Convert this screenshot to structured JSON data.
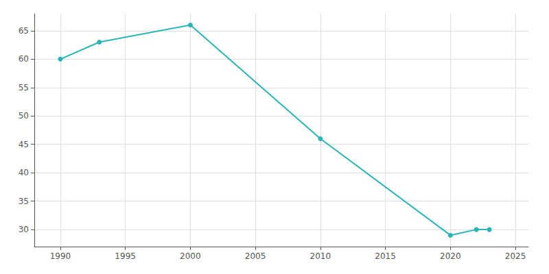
{
  "chart_data": {
    "type": "line",
    "x": [
      1990,
      1993,
      2000,
      2010,
      2020,
      2022,
      2023
    ],
    "values": [
      60,
      63,
      66,
      46,
      29,
      30,
      30
    ],
    "color": "#2ab5b5",
    "marker": "circle",
    "xlim": [
      1988,
      2026
    ],
    "xticks": [
      1990,
      1995,
      2000,
      2005,
      2010,
      2015,
      2020,
      2025
    ],
    "ylim": [
      27,
      68
    ],
    "yticks": [
      30,
      35,
      40,
      45,
      50,
      55,
      60,
      65
    ],
    "grid": true
  }
}
